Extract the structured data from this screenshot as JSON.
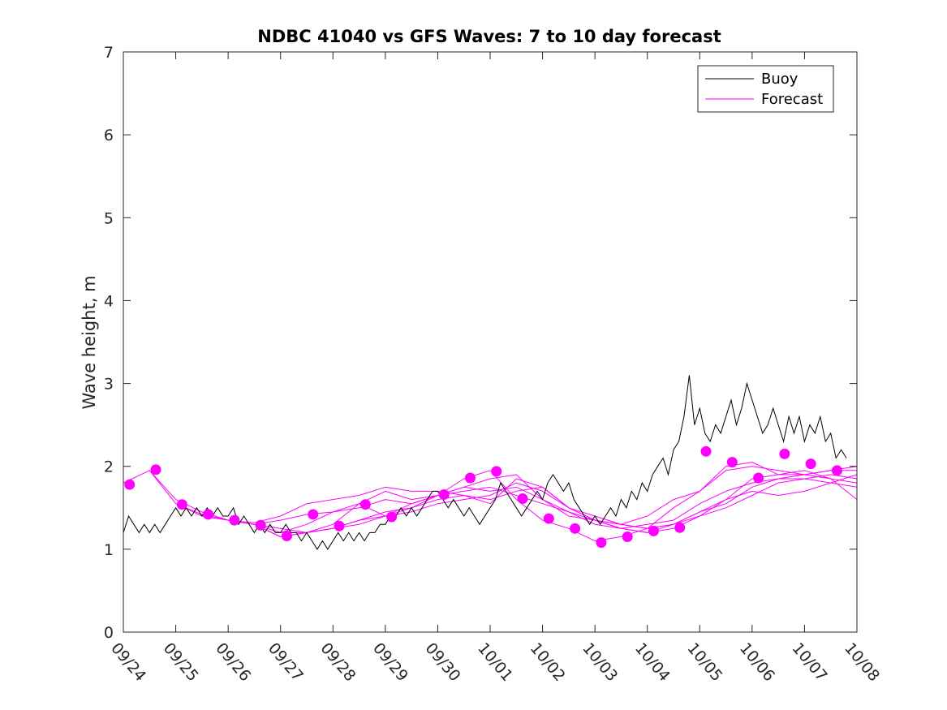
{
  "chart_data": {
    "type": "line",
    "title": "NDBC 41040 vs GFS Waves: 7 to 10 day forecast",
    "xlabel": "",
    "ylabel": "Wave height, m",
    "ylim": [
      0,
      7
    ],
    "yticks": [
      "0",
      "1",
      "2",
      "3",
      "4",
      "5",
      "6",
      "7"
    ],
    "xlim_days": [
      0,
      14
    ],
    "xticks": [
      "09/24",
      "09/25",
      "09/26",
      "09/27",
      "09/28",
      "09/29",
      "09/30",
      "10/01",
      "10/02",
      "10/03",
      "10/04",
      "10/05",
      "10/06",
      "10/07",
      "10/08"
    ],
    "legend": {
      "position": "top-right",
      "entries": [
        "Buoy",
        "Forecast"
      ]
    },
    "colors": {
      "buoy": "#000000",
      "forecast": "#ff00ff"
    },
    "buoy": {
      "name": "Buoy",
      "x_days": [
        0,
        0.1,
        0.2,
        0.3,
        0.4,
        0.5,
        0.6,
        0.7,
        0.8,
        0.9,
        1.0,
        1.1,
        1.2,
        1.3,
        1.4,
        1.5,
        1.6,
        1.7,
        1.8,
        1.9,
        2.0,
        2.1,
        2.2,
        2.3,
        2.4,
        2.5,
        2.6,
        2.7,
        2.8,
        2.9,
        3.0,
        3.1,
        3.2,
        3.3,
        3.4,
        3.5,
        3.6,
        3.7,
        3.8,
        3.9,
        4.0,
        4.1,
        4.2,
        4.3,
        4.4,
        4.5,
        4.6,
        4.7,
        4.8,
        4.9,
        5.0,
        5.1,
        5.2,
        5.3,
        5.4,
        5.5,
        5.6,
        5.7,
        5.8,
        5.9,
        6.0,
        6.1,
        6.2,
        6.3,
        6.4,
        6.5,
        6.6,
        6.7,
        6.8,
        6.9,
        7.0,
        7.1,
        7.2,
        7.3,
        7.4,
        7.5,
        7.6,
        7.7,
        7.8,
        7.9,
        8.0,
        8.1,
        8.2,
        8.3,
        8.4,
        8.5,
        8.6,
        8.7,
        8.8,
        8.9,
        9.0,
        9.1,
        9.2,
        9.3,
        9.4,
        9.5,
        9.6,
        9.7,
        9.8,
        9.9,
        10.0,
        10.1,
        10.2,
        10.3,
        10.4,
        10.5,
        10.6,
        10.7,
        10.8,
        10.9,
        11.0,
        11.1,
        11.2,
        11.3,
        11.4,
        11.5,
        11.6,
        11.7,
        11.8,
        11.9,
        12.0,
        12.1,
        12.2,
        12.3,
        12.4,
        12.5,
        12.6,
        12.7,
        12.8,
        12.9,
        13.0,
        13.1,
        13.2,
        13.3,
        13.4,
        13.5,
        13.6,
        13.7,
        13.8
      ],
      "values": [
        1.2,
        1.4,
        1.3,
        1.2,
        1.3,
        1.2,
        1.3,
        1.2,
        1.3,
        1.4,
        1.5,
        1.4,
        1.5,
        1.4,
        1.5,
        1.4,
        1.5,
        1.4,
        1.5,
        1.4,
        1.4,
        1.5,
        1.3,
        1.4,
        1.3,
        1.2,
        1.3,
        1.2,
        1.3,
        1.2,
        1.2,
        1.3,
        1.2,
        1.2,
        1.1,
        1.2,
        1.1,
        1.0,
        1.1,
        1.0,
        1.1,
        1.2,
        1.1,
        1.2,
        1.1,
        1.2,
        1.1,
        1.2,
        1.2,
        1.3,
        1.3,
        1.4,
        1.4,
        1.5,
        1.4,
        1.5,
        1.4,
        1.5,
        1.6,
        1.7,
        1.7,
        1.6,
        1.5,
        1.6,
        1.5,
        1.4,
        1.5,
        1.4,
        1.3,
        1.4,
        1.5,
        1.6,
        1.8,
        1.7,
        1.6,
        1.5,
        1.4,
        1.5,
        1.6,
        1.7,
        1.6,
        1.8,
        1.9,
        1.8,
        1.7,
        1.8,
        1.6,
        1.5,
        1.4,
        1.3,
        1.4,
        1.3,
        1.4,
        1.5,
        1.4,
        1.6,
        1.5,
        1.7,
        1.6,
        1.8,
        1.7,
        1.9,
        2.0,
        2.1,
        1.9,
        2.2,
        2.3,
        2.6,
        3.1,
        2.5,
        2.7,
        2.4,
        2.3,
        2.5,
        2.4,
        2.6,
        2.8,
        2.5,
        2.7,
        3.0,
        2.8,
        2.6,
        2.4,
        2.5,
        2.7,
        2.5,
        2.3,
        2.6,
        2.4,
        2.6,
        2.3,
        2.5,
        2.4,
        2.6,
        2.3,
        2.4,
        2.1,
        2.2,
        2.1
      ]
    },
    "forecasts": [
      {
        "name": "Forecast",
        "x_days": [
          0,
          0.5,
          1,
          1.5,
          2,
          2.5,
          3,
          3.5,
          4,
          4.5,
          5,
          5.5,
          6,
          6.5,
          7,
          7.5,
          8,
          8.5,
          9,
          9.5,
          10,
          10.5,
          11,
          11.5,
          12,
          12.5,
          13,
          13.5,
          14
        ],
        "values": [
          1.8,
          1.95,
          1.6,
          1.45,
          1.35,
          1.3,
          1.2,
          1.2,
          1.25,
          1.35,
          1.4,
          1.55,
          1.65,
          1.85,
          1.95,
          1.6,
          1.35,
          1.25,
          1.1,
          1.15,
          1.25,
          1.3,
          1.4,
          1.5,
          1.65,
          1.8,
          1.85,
          1.9,
          1.85
        ]
      },
      {
        "name": "Forecast",
        "x_days": [
          0.5,
          1,
          1.5,
          2,
          2.5,
          3,
          3.5,
          4,
          4.5,
          5,
          5.5,
          6,
          6.5,
          7,
          7.5,
          8,
          8.5,
          9,
          9.5,
          10,
          10.5,
          11,
          11.5,
          12,
          12.5,
          13,
          13.5,
          14
        ],
        "values": [
          1.95,
          1.55,
          1.42,
          1.35,
          1.3,
          1.15,
          1.2,
          1.3,
          1.55,
          1.4,
          1.5,
          1.65,
          1.75,
          1.85,
          1.9,
          1.6,
          1.4,
          1.35,
          1.3,
          1.25,
          1.5,
          1.7,
          2.0,
          2.05,
          1.9,
          1.9,
          1.85,
          1.8
        ]
      },
      {
        "name": "Forecast",
        "x_days": [
          1,
          1.5,
          2,
          2.5,
          3,
          3.5,
          4,
          4.5,
          5,
          5.5,
          6,
          6.5,
          7,
          7.5,
          8,
          8.5,
          9,
          9.5,
          10,
          10.5,
          11,
          11.5,
          12,
          12.5,
          13,
          13.5,
          14
        ],
        "values": [
          1.55,
          1.4,
          1.35,
          1.3,
          1.35,
          1.42,
          1.45,
          1.5,
          1.6,
          1.55,
          1.65,
          1.75,
          1.7,
          1.75,
          1.6,
          1.45,
          1.35,
          1.25,
          1.2,
          1.25,
          1.4,
          1.6,
          1.85,
          1.9,
          1.95,
          1.85,
          1.6
        ]
      },
      {
        "name": "Forecast",
        "x_days": [
          1.5,
          2,
          2.5,
          3,
          3.5,
          4,
          4.5,
          5,
          5.5,
          6,
          6.5,
          7,
          7.5,
          8,
          8.5,
          9,
          9.5,
          10,
          10.5,
          11,
          11.5,
          12,
          12.5,
          13,
          13.5,
          14
        ],
        "values": [
          1.45,
          1.35,
          1.32,
          1.4,
          1.55,
          1.6,
          1.65,
          1.75,
          1.7,
          1.7,
          1.65,
          1.55,
          1.85,
          1.75,
          1.5,
          1.4,
          1.3,
          1.25,
          1.3,
          1.45,
          1.55,
          1.75,
          1.85,
          1.9,
          1.95,
          1.95
        ]
      },
      {
        "name": "Forecast",
        "x_days": [
          2,
          2.5,
          3,
          3.5,
          4,
          4.5,
          5,
          5.5,
          6,
          6.5,
          7,
          7.5,
          8,
          8.5,
          9,
          9.5,
          10,
          10.5,
          11,
          11.5,
          12,
          12.5,
          13,
          13.5,
          14
        ],
        "values": [
          1.35,
          1.3,
          1.25,
          1.2,
          1.25,
          1.3,
          1.4,
          1.45,
          1.55,
          1.6,
          1.65,
          1.8,
          1.7,
          1.5,
          1.35,
          1.3,
          1.4,
          1.6,
          1.7,
          1.95,
          2.0,
          1.95,
          1.9,
          1.95,
          2.0
        ]
      },
      {
        "name": "Forecast",
        "x_days": [
          2.5,
          3,
          3.5,
          4,
          4.5,
          5,
          5.5,
          6,
          6.5,
          7,
          7.5,
          8,
          8.5,
          9,
          9.5,
          10,
          10.5,
          11,
          11.5,
          12,
          12.5,
          13,
          13.5,
          14
        ],
        "values": [
          1.3,
          1.15,
          1.2,
          1.25,
          1.35,
          1.45,
          1.5,
          1.6,
          1.65,
          1.6,
          1.7,
          1.75,
          1.5,
          1.35,
          1.25,
          1.2,
          1.3,
          1.45,
          1.6,
          1.7,
          1.65,
          1.7,
          1.8,
          1.9
        ]
      },
      {
        "name": "Forecast",
        "x_days": [
          3,
          3.5,
          4,
          4.5,
          5,
          5.5,
          6,
          6.5,
          7,
          7.5,
          8,
          8.5,
          9,
          9.5,
          10,
          10.5,
          11,
          11.5,
          12,
          12.5,
          13,
          13.5,
          14
        ],
        "values": [
          1.2,
          1.3,
          1.45,
          1.55,
          1.7,
          1.6,
          1.65,
          1.7,
          1.75,
          1.65,
          1.55,
          1.45,
          1.3,
          1.25,
          1.3,
          1.35,
          1.55,
          1.7,
          1.8,
          1.85,
          1.85,
          1.8,
          1.75
        ]
      }
    ],
    "forecast_markers": [
      {
        "x_days": 0.12,
        "value": 1.78
      },
      {
        "x_days": 0.62,
        "value": 1.96
      },
      {
        "x_days": 1.12,
        "value": 1.54
      },
      {
        "x_days": 1.62,
        "value": 1.42
      },
      {
        "x_days": 2.12,
        "value": 1.35
      },
      {
        "x_days": 2.62,
        "value": 1.29
      },
      {
        "x_days": 3.12,
        "value": 1.16
      },
      {
        "x_days": 3.62,
        "value": 1.42
      },
      {
        "x_days": 4.12,
        "value": 1.28
      },
      {
        "x_days": 4.62,
        "value": 1.54
      },
      {
        "x_days": 5.12,
        "value": 1.39
      },
      {
        "x_days": 6.12,
        "value": 1.66
      },
      {
        "x_days": 6.62,
        "value": 1.86
      },
      {
        "x_days": 7.12,
        "value": 1.94
      },
      {
        "x_days": 7.62,
        "value": 1.61
      },
      {
        "x_days": 8.12,
        "value": 1.37
      },
      {
        "x_days": 8.62,
        "value": 1.25
      },
      {
        "x_days": 9.12,
        "value": 1.08
      },
      {
        "x_days": 9.62,
        "value": 1.15
      },
      {
        "x_days": 10.12,
        "value": 1.22
      },
      {
        "x_days": 10.62,
        "value": 1.26
      },
      {
        "x_days": 11.12,
        "value": 2.18
      },
      {
        "x_days": 11.62,
        "value": 2.05
      },
      {
        "x_days": 12.12,
        "value": 1.86
      },
      {
        "x_days": 12.62,
        "value": 2.15
      },
      {
        "x_days": 13.12,
        "value": 2.03
      },
      {
        "x_days": 13.62,
        "value": 1.95
      }
    ]
  }
}
